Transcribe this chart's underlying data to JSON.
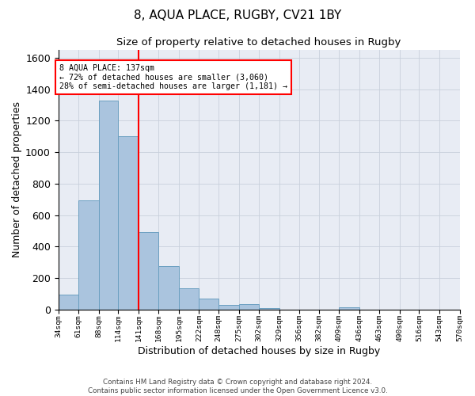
{
  "title": "8, AQUA PLACE, RUGBY, CV21 1BY",
  "subtitle": "Size of property relative to detached houses in Rugby",
  "xlabel": "Distribution of detached houses by size in Rugby",
  "ylabel": "Number of detached properties",
  "bar_values": [
    95,
    695,
    1330,
    1100,
    490,
    275,
    135,
    70,
    30,
    35,
    10,
    0,
    0,
    0,
    15,
    0,
    0,
    0,
    0,
    0
  ],
  "bin_edges": [
    34,
    61,
    88,
    114,
    141,
    168,
    195,
    222,
    248,
    275,
    302,
    329,
    356,
    382,
    409,
    436,
    463,
    490,
    516,
    543,
    570
  ],
  "tick_labels": [
    "34sqm",
    "61sqm",
    "88sqm",
    "114sqm",
    "141sqm",
    "168sqm",
    "195sqm",
    "222sqm",
    "248sqm",
    "275sqm",
    "302sqm",
    "329sqm",
    "356sqm",
    "382sqm",
    "409sqm",
    "436sqm",
    "463sqm",
    "490sqm",
    "516sqm",
    "543sqm",
    "570sqm"
  ],
  "bar_color": "#aac4de",
  "bar_edge_color": "#6b9fc0",
  "red_line_x": 141,
  "red_box_text_line1": "8 AQUA PLACE: 137sqm",
  "red_box_text_line2": "← 72% of detached houses are smaller (3,060)",
  "red_box_text_line3": "28% of semi-detached houses are larger (1,181) →",
  "ylim": [
    0,
    1650
  ],
  "yticks": [
    0,
    200,
    400,
    600,
    800,
    1000,
    1200,
    1400,
    1600
  ],
  "grid_color": "#c8d0dc",
  "bg_color": "#e8ecf4",
  "footnote_line1": "Contains HM Land Registry data © Crown copyright and database right 2024.",
  "footnote_line2": "Contains public sector information licensed under the Open Government Licence v3.0."
}
